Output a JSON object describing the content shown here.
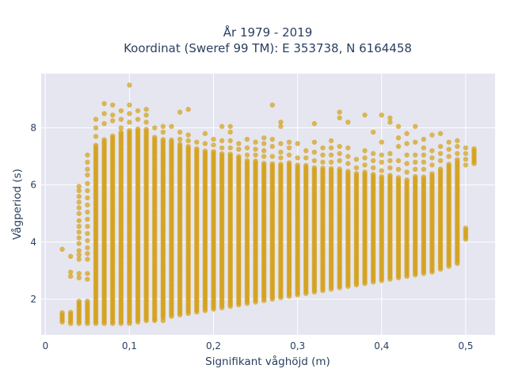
{
  "chart_data": {
    "type": "scatter",
    "title_line1": "År 1979 - 2019",
    "title_line2": "Koordinat (Sweref 99 TM): E 353738, N 6164458",
    "xlabel": "Signifikant våghöjd (m)",
    "ylabel": "Vågperiod (s)",
    "xlim": [
      -0.005,
      0.535
    ],
    "ylim": [
      0.75,
      9.9
    ],
    "x_ticks": [
      {
        "value": 0,
        "label": "0"
      },
      {
        "value": 0.1,
        "label": "0,1"
      },
      {
        "value": 0.2,
        "label": "0,2"
      },
      {
        "value": 0.3,
        "label": "0,3"
      },
      {
        "value": 0.4,
        "label": "0,4"
      },
      {
        "value": 0.5,
        "label": "0,5"
      }
    ],
    "y_ticks": [
      {
        "value": 2,
        "label": "2"
      },
      {
        "value": 4,
        "label": "4"
      },
      {
        "value": 6,
        "label": "6"
      },
      {
        "value": 8,
        "label": "8"
      }
    ],
    "grid": true,
    "legend": "none",
    "marker_color": "#d4a017",
    "plot_bg": "#e5e6ef",
    "x_step": 0.01,
    "columns": [
      {
        "x": 0.02,
        "y_min": 1.2,
        "y_max": 1.55,
        "outliers": [
          3.75
        ]
      },
      {
        "x": 0.03,
        "y_min": 1.15,
        "y_max": 1.6,
        "outliers": [
          2.8,
          2.95,
          3.5
        ]
      },
      {
        "x": 0.04,
        "y_min": 1.15,
        "y_max": 1.95,
        "outliers": [
          2.75,
          2.9,
          3.4,
          3.55,
          3.7,
          3.95,
          4.15,
          4.35,
          4.55,
          4.75,
          5.0,
          5.2,
          5.4,
          5.6,
          5.8,
          5.95
        ]
      },
      {
        "x": 0.05,
        "y_min": 1.15,
        "y_max": 1.95,
        "outliers": [
          2.7,
          2.9,
          3.4,
          3.6,
          3.8,
          4.05,
          4.3,
          4.55,
          4.8,
          5.05,
          5.3,
          5.55,
          5.8,
          6.05,
          6.35,
          6.55,
          6.8,
          7.05
        ]
      },
      {
        "x": 0.06,
        "y_min": 1.15,
        "y_max": 7.4,
        "outliers": [
          7.7,
          8.0,
          8.3
        ]
      },
      {
        "x": 0.07,
        "y_min": 1.15,
        "y_max": 7.6,
        "outliers": [
          8.15,
          8.5,
          8.85
        ]
      },
      {
        "x": 0.08,
        "y_min": 1.15,
        "y_max": 7.75,
        "outliers": [
          8.25,
          8.45,
          8.8
        ]
      },
      {
        "x": 0.09,
        "y_min": 1.15,
        "y_max": 7.9,
        "outliers": [
          8.0,
          8.3,
          8.6
        ]
      },
      {
        "x": 0.1,
        "y_min": 1.15,
        "y_max": 7.95,
        "outliers": [
          8.2,
          8.5,
          8.8,
          9.5
        ]
      },
      {
        "x": 0.11,
        "y_min": 1.2,
        "y_max": 8.0,
        "outliers": [
          8.3,
          8.6
        ]
      },
      {
        "x": 0.12,
        "y_min": 1.25,
        "y_max": 7.95,
        "outliers": [
          8.2,
          8.45,
          8.65
        ]
      },
      {
        "x": 0.13,
        "y_min": 1.3,
        "y_max": 7.7,
        "outliers": [
          1.25,
          8.0
        ]
      },
      {
        "x": 0.14,
        "y_min": 1.35,
        "y_max": 7.6,
        "outliers": [
          1.25,
          7.85,
          8.05
        ]
      },
      {
        "x": 0.15,
        "y_min": 1.4,
        "y_max": 7.6,
        "outliers": [
          8.05
        ]
      },
      {
        "x": 0.16,
        "y_min": 1.45,
        "y_max": 7.45,
        "outliers": [
          7.6,
          7.85,
          8.55
        ]
      },
      {
        "x": 0.17,
        "y_min": 1.5,
        "y_max": 7.35,
        "outliers": [
          7.55,
          7.75,
          8.65
        ]
      },
      {
        "x": 0.18,
        "y_min": 1.55,
        "y_max": 7.3,
        "outliers": [
          7.5
        ]
      },
      {
        "x": 0.19,
        "y_min": 1.6,
        "y_max": 7.25,
        "outliers": [
          7.45,
          7.8
        ]
      },
      {
        "x": 0.2,
        "y_min": 1.65,
        "y_max": 7.2,
        "outliers": [
          7.4,
          7.6
        ]
      },
      {
        "x": 0.21,
        "y_min": 1.7,
        "y_max": 7.15,
        "outliers": [
          7.3,
          7.55,
          8.05
        ]
      },
      {
        "x": 0.22,
        "y_min": 1.75,
        "y_max": 7.1,
        "outliers": [
          7.3,
          7.55,
          7.85,
          8.05
        ]
      },
      {
        "x": 0.23,
        "y_min": 1.8,
        "y_max": 7.05,
        "outliers": [
          7.25,
          7.45
        ]
      },
      {
        "x": 0.24,
        "y_min": 1.85,
        "y_max": 6.9,
        "outliers": [
          7.05,
          7.3,
          7.6
        ]
      },
      {
        "x": 0.25,
        "y_min": 1.9,
        "y_max": 6.85,
        "outliers": [
          7.05,
          7.25,
          7.5
        ]
      },
      {
        "x": 0.26,
        "y_min": 1.95,
        "y_max": 6.8,
        "outliers": [
          7.0,
          7.2,
          7.45,
          7.65
        ]
      },
      {
        "x": 0.27,
        "y_min": 2.0,
        "y_max": 6.75,
        "outliers": [
          7.0,
          7.35,
          7.6,
          8.8
        ]
      },
      {
        "x": 0.28,
        "y_min": 2.05,
        "y_max": 6.75,
        "outliers": [
          6.95,
          7.15,
          7.45,
          8.05,
          8.2
        ]
      },
      {
        "x": 0.29,
        "y_min": 2.1,
        "y_max": 6.8,
        "outliers": [
          7.05,
          7.3,
          7.5
        ]
      },
      {
        "x": 0.3,
        "y_min": 2.15,
        "y_max": 6.75,
        "outliers": [
          6.95,
          7.45
        ]
      },
      {
        "x": 0.31,
        "y_min": 2.2,
        "y_max": 6.7,
        "outliers": [
          6.95,
          7.2
        ]
      },
      {
        "x": 0.32,
        "y_min": 2.25,
        "y_max": 6.65,
        "outliers": [
          6.85,
          7.15,
          7.5,
          8.15
        ]
      },
      {
        "x": 0.33,
        "y_min": 2.3,
        "y_max": 6.6,
        "outliers": [
          6.8,
          7.05,
          7.3
        ]
      },
      {
        "x": 0.34,
        "y_min": 2.35,
        "y_max": 6.6,
        "outliers": [
          6.8,
          7.05,
          7.3,
          7.55
        ]
      },
      {
        "x": 0.35,
        "y_min": 2.4,
        "y_max": 6.6,
        "outliers": [
          6.85,
          7.1,
          7.35,
          8.35,
          8.55
        ]
      },
      {
        "x": 0.36,
        "y_min": 2.45,
        "y_max": 6.5,
        "outliers": [
          6.75,
          7.0,
          7.3,
          8.2
        ]
      },
      {
        "x": 0.37,
        "y_min": 2.5,
        "y_max": 6.4,
        "outliers": [
          6.6,
          6.9
        ]
      },
      {
        "x": 0.38,
        "y_min": 2.55,
        "y_max": 6.5,
        "outliers": [
          6.7,
          6.95,
          7.2,
          8.45
        ]
      },
      {
        "x": 0.39,
        "y_min": 2.6,
        "y_max": 6.4,
        "outliers": [
          6.6,
          6.85,
          7.1,
          7.85
        ]
      },
      {
        "x": 0.4,
        "y_min": 2.65,
        "y_max": 6.3,
        "outliers": [
          6.5,
          6.8,
          7.05,
          7.5,
          8.45
        ]
      },
      {
        "x": 0.41,
        "y_min": 2.7,
        "y_max": 6.35,
        "outliers": [
          6.6,
          6.85,
          7.1,
          8.2,
          8.35
        ]
      },
      {
        "x": 0.42,
        "y_min": 2.75,
        "y_max": 6.3,
        "outliers": [
          6.55,
          6.85,
          7.35,
          7.65,
          8.05
        ]
      },
      {
        "x": 0.43,
        "y_min": 2.8,
        "y_max": 6.2,
        "outliers": [
          6.45,
          6.75,
          7.05,
          7.45,
          7.8
        ]
      },
      {
        "x": 0.44,
        "y_min": 2.85,
        "y_max": 6.3,
        "outliers": [
          6.55,
          6.8,
          7.05,
          7.5,
          8.05
        ]
      },
      {
        "x": 0.45,
        "y_min": 2.9,
        "y_max": 6.3,
        "outliers": [
          6.55,
          6.8,
          7.05,
          7.3,
          7.6
        ]
      },
      {
        "x": 0.46,
        "y_min": 2.95,
        "y_max": 6.45,
        "outliers": [
          6.7,
          6.95,
          7.2,
          7.75
        ]
      },
      {
        "x": 0.47,
        "y_min": 3.05,
        "y_max": 6.6,
        "outliers": [
          6.85,
          7.1,
          7.35,
          7.8
        ]
      },
      {
        "x": 0.48,
        "y_min": 3.15,
        "y_max": 6.75,
        "outliers": [
          7.0,
          7.25,
          7.5
        ]
      },
      {
        "x": 0.49,
        "y_min": 3.25,
        "y_max": 6.9,
        "outliers": [
          7.1,
          7.35,
          7.55
        ]
      },
      {
        "x": 0.5,
        "y_min": 4.1,
        "y_max": 4.5,
        "outliers": [
          6.7,
          6.9,
          7.1,
          7.3
        ]
      },
      {
        "x": 0.51,
        "y_min": 6.75,
        "y_max": 7.3,
        "outliers": []
      }
    ]
  }
}
